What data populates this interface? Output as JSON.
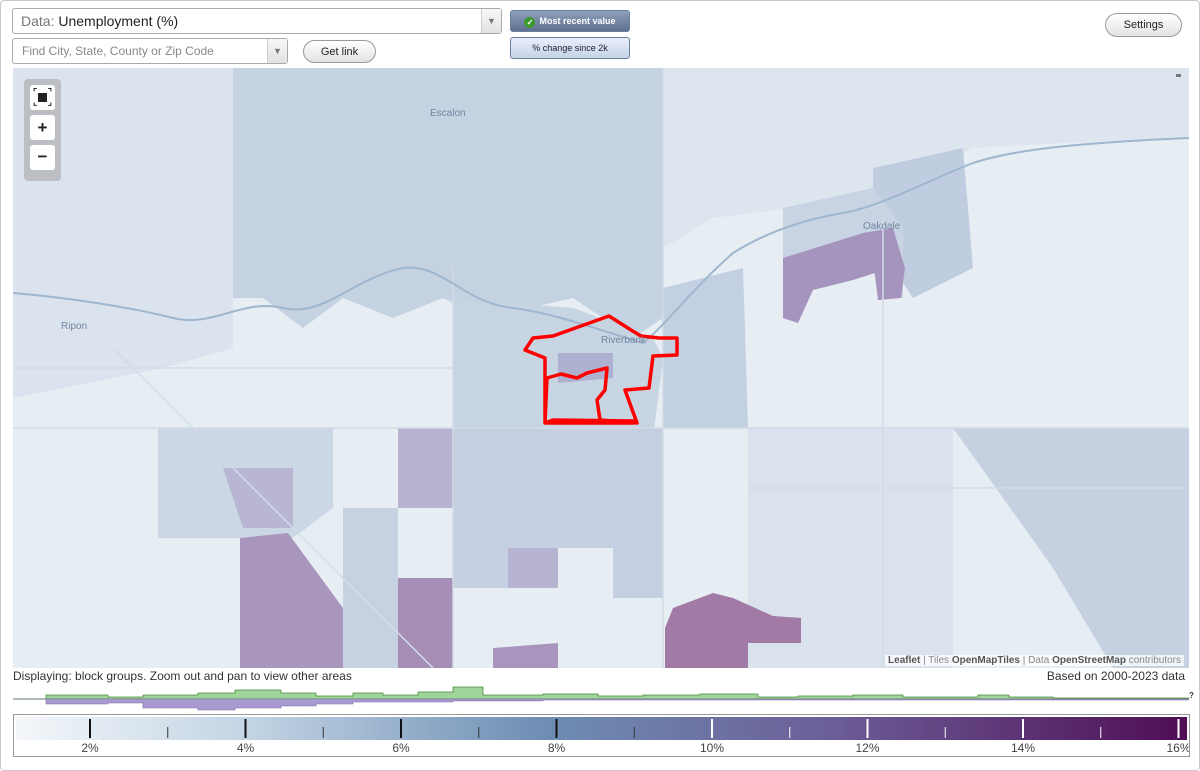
{
  "header": {
    "data_prefix": "Data:",
    "data_value": "Unemployment (%)",
    "search_placeholder": "Find City, State, County or Zip Code",
    "get_link_label": "Get link",
    "settings_label": "Settings",
    "mode_active": "Most recent value",
    "mode_inactive": "% change since 2k"
  },
  "map": {
    "places": [
      {
        "name": "Escalon"
      },
      {
        "name": "Oakdale"
      },
      {
        "name": "Ripon"
      },
      {
        "name": "Riverbank"
      }
    ],
    "highlight_color": "#ff0000",
    "attribution": {
      "leaflet": "Leaflet",
      "sep1": "|",
      "tiles_prefix": "Tiles",
      "tiles": "OpenMapTiles",
      "sep2": "|",
      "data_prefix": "Data",
      "data": "OpenStreetMap",
      "contributors": "contributors"
    }
  },
  "footer": {
    "display_note": "Displaying: block groups. Zoom out and pan to view other areas",
    "data_years": "Based on 2000-2023 data",
    "hist_unknown": "?"
  },
  "legend": {
    "ticks": [
      "2%",
      "4%",
      "6%",
      "8%",
      "10%",
      "12%",
      "14%",
      "16%"
    ],
    "color_low": "#f4f7fa",
    "color_mid": "#6e8eb4",
    "color_high": "#4f0d55"
  }
}
